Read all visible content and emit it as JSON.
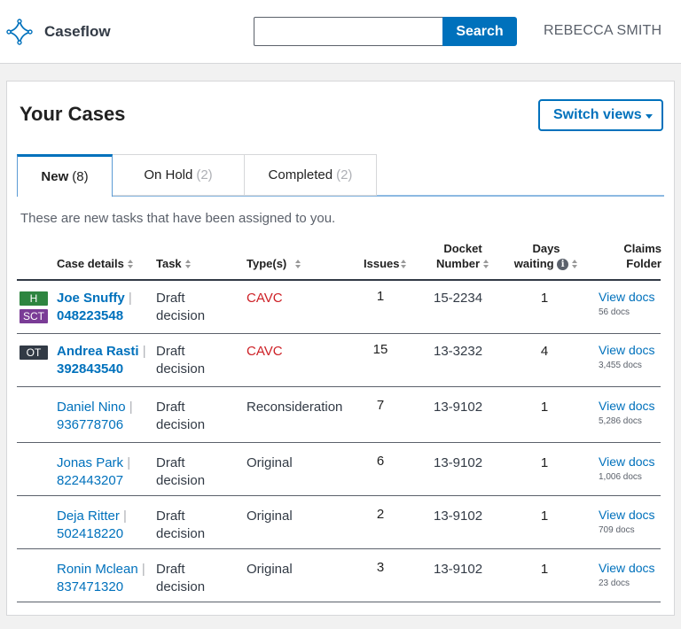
{
  "app": {
    "name": "Caseflow"
  },
  "search": {
    "placeholder": "",
    "value": "",
    "button_label": "Search"
  },
  "user": {
    "name": "REBECCA SMITH"
  },
  "page": {
    "title": "Your Cases",
    "switch_views_label": "Switch views",
    "intro": "These are new tasks that have been assigned to you."
  },
  "tabs": [
    {
      "label": "New",
      "count": "(8)"
    },
    {
      "label": "On Hold",
      "count": "(2)"
    },
    {
      "label": "Completed",
      "count": "(2)"
    }
  ],
  "columns": {
    "case_details": "Case details",
    "task": "Task",
    "types": "Type(s)",
    "issues": "Issues",
    "docket_line1": "Docket",
    "docket_line2": "Number",
    "days_line1": "Days",
    "days_line2": "waiting",
    "claims_line1": "Claims",
    "claims_line2": "Folder"
  },
  "rows": [
    {
      "badges": [
        "H",
        "SCT"
      ],
      "name": "Joe Snuffy",
      "file": "048223548",
      "task_line1": "Draft",
      "task_line2": "decision",
      "type": "CAVC",
      "issues": "1",
      "docket": "15-2234",
      "days": "1",
      "view_label": "View docs",
      "docs": "56 docs",
      "highlight": true
    },
    {
      "badges": [
        "OT"
      ],
      "name": "Andrea Rasti",
      "file": "392843540",
      "task_line1": "Draft",
      "task_line2": "decision",
      "type": "CAVC",
      "issues": "15",
      "docket": "13-3232",
      "days": "4",
      "view_label": "View docs",
      "docs": "3,455 docs",
      "highlight": true
    },
    {
      "badges": [],
      "name": "Daniel Nino",
      "file": "936778706",
      "task_line1": "Draft",
      "task_line2": "decision",
      "type": "Reconsideration",
      "issues": "7",
      "docket": "13-9102",
      "days": "1",
      "view_label": "View docs",
      "docs": "5,286 docs",
      "highlight": false
    },
    {
      "badges": [],
      "name": "Jonas Park",
      "file": "822443207",
      "task_line1": "Draft",
      "task_line2": "decision",
      "type": "Original",
      "issues": "6",
      "docket": "13-9102",
      "days": "1",
      "view_label": "View docs",
      "docs": "1,006 docs",
      "highlight": false
    },
    {
      "badges": [],
      "name": "Deja Ritter",
      "file": "502418220",
      "task_line1": "Draft",
      "task_line2": "decision",
      "type": "Original",
      "issues": "2",
      "docket": "13-9102",
      "days": "1",
      "view_label": "View docs",
      "docs": "709 docs",
      "highlight": false
    },
    {
      "badges": [],
      "name": "Ronin Mclean",
      "file": "837471320",
      "task_line1": "Draft",
      "task_line2": "decision",
      "type": "Original",
      "issues": "3",
      "docket": "13-9102",
      "days": "1",
      "view_label": "View docs",
      "docs": "23 docs",
      "highlight": false
    }
  ],
  "colors": {
    "link": "#0071bc",
    "cavc": "#cd2026",
    "badge_h": "#2e8540",
    "badge_sct": "#7a3c96",
    "badge_ot": "#323a45"
  }
}
